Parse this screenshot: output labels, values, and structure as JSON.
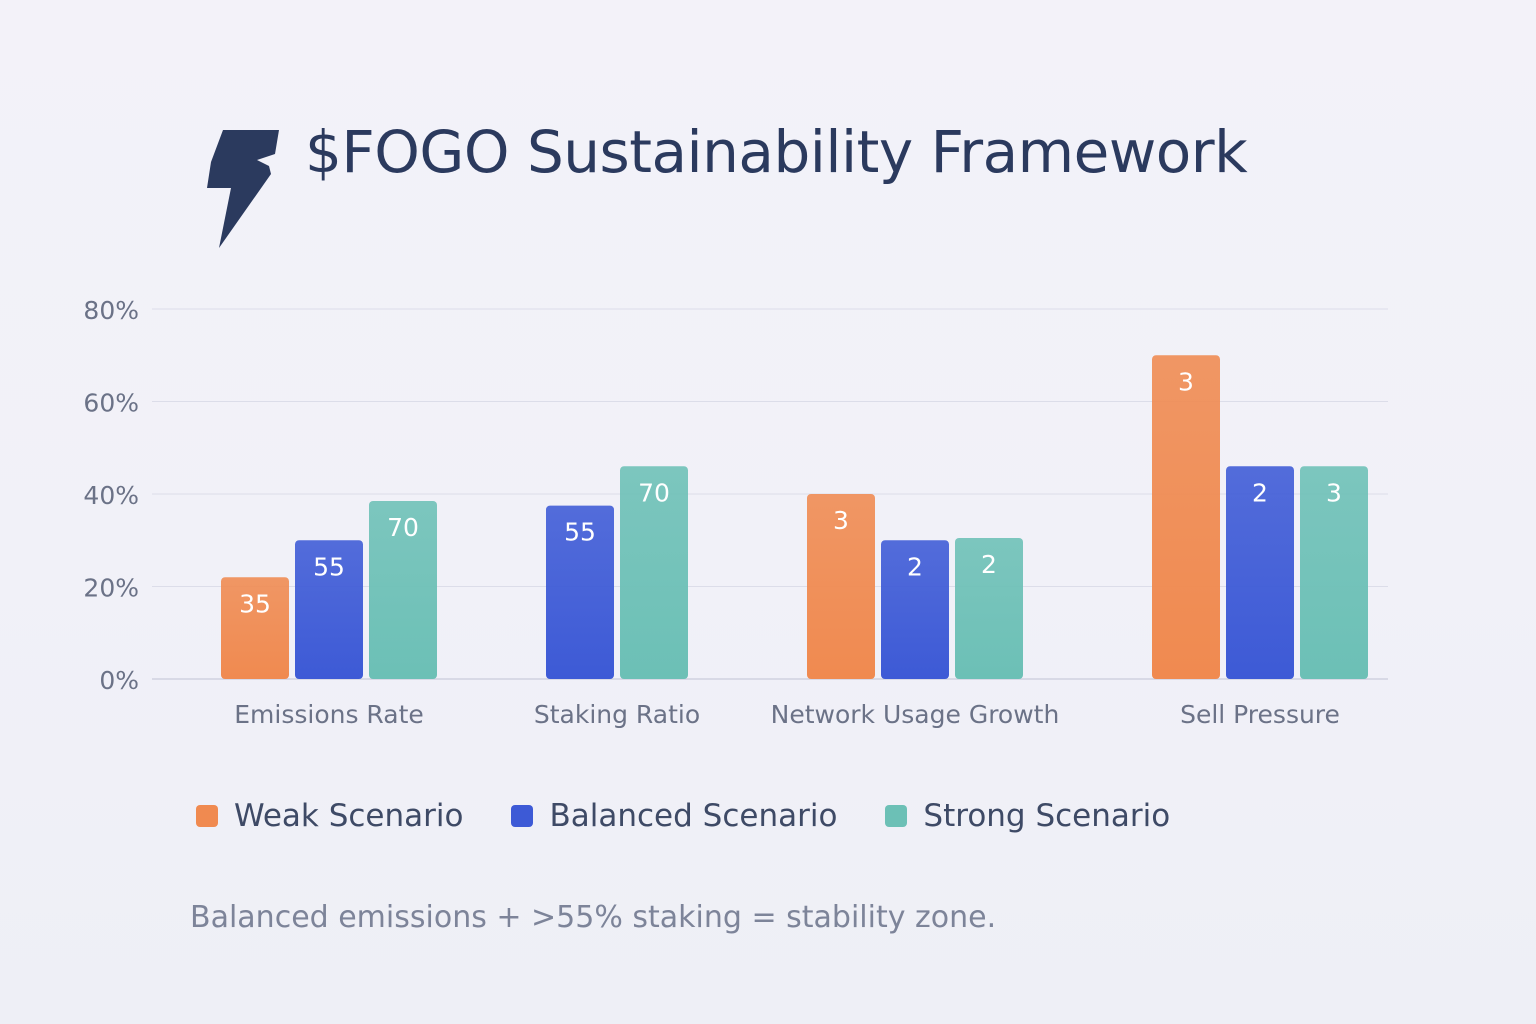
{
  "title": "$FOGO Sustainability Framework",
  "logo": "fogo-lightning-bolt-logo",
  "footnote": "Balanced emissions + >55% staking = stability zone.",
  "colors": {
    "weak": "#f08a50",
    "balanced": "#3d5ad6",
    "strong": "#6cc0b6",
    "title": "#2b3a5e",
    "axis_text": "#6b7287",
    "gridline": "#dcdde9"
  },
  "chart_data": {
    "type": "bar",
    "title": "$FOGO Sustainability Framework",
    "xlabel": "",
    "ylabel": "",
    "ylim": [
      0,
      80
    ],
    "y_ticks": [
      "0%",
      "20%",
      "40%",
      "60%",
      "80%"
    ],
    "y_tick_values": [
      0,
      20,
      40,
      60,
      80
    ],
    "grid": true,
    "legend_position": "bottom",
    "categories": [
      "Emissions Rate",
      "Staking Ratio",
      "Network Usage Growth",
      "Sell Pressure"
    ],
    "series": [
      {
        "name": "Weak Scenario",
        "color": "#f08a50",
        "values": [
          22,
          null,
          40,
          70
        ],
        "labels": [
          "35",
          "",
          "3",
          "3"
        ]
      },
      {
        "name": "Balanced Scenario",
        "color": "#3d5ad6",
        "values": [
          30,
          37.5,
          30,
          46
        ],
        "labels": [
          "55",
          "55",
          "2",
          "2"
        ]
      },
      {
        "name": "Strong Scenario",
        "color": "#6cc0b6",
        "values": [
          38.5,
          46,
          30.5,
          46
        ],
        "labels": [
          "70",
          "70",
          "2",
          "3"
        ]
      }
    ]
  }
}
